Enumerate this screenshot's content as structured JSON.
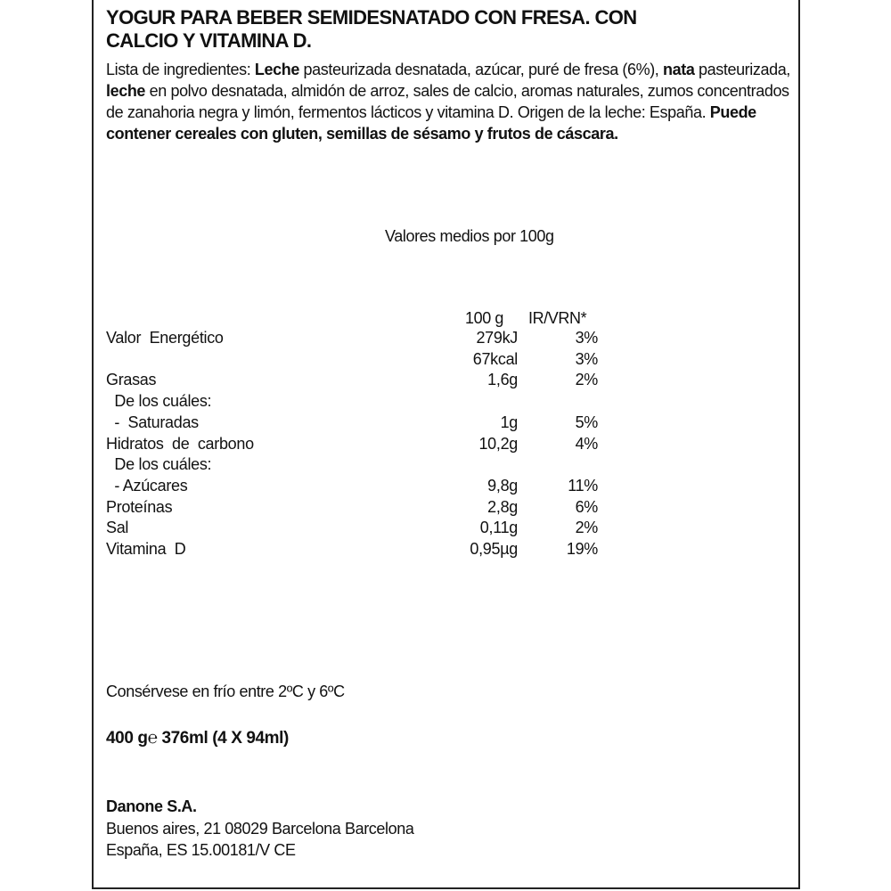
{
  "title": [
    "YOGUR PARA BEBER SEMIDESNATADO CON FRESA. CON",
    "CALCIO Y VITAMINA D."
  ],
  "ingredients": [
    {
      "text": "Lista de ingredientes: ",
      "bold": false
    },
    {
      "text": "Leche",
      "bold": true
    },
    {
      "text": " pasteurizada desnatada, azúcar, puré de fresa (6%), ",
      "bold": false
    },
    {
      "text": "nata",
      "bold": true
    },
    {
      "text": " pasteurizada, ",
      "bold": false
    },
    {
      "text": "leche",
      "bold": true
    },
    {
      "text": " en polvo desnatada, almidón de arroz, sales de calcio, aromas naturales, zumos concentrados de zanahoria negra y limón, fermentos lácticos y vitamina D. Origen de la leche: España.  ",
      "bold": false
    },
    {
      "text": "Puede contener cereales con gluten, semillas de sésamo y frutos de cáscara.",
      "bold": true
    }
  ],
  "nutrition": {
    "heading": "Valores medios por 100g",
    "col_100g": "100 g",
    "col_ir": "IR/VRN*",
    "rows": [
      {
        "label": "Valor  Energético",
        "value": "279kJ",
        "pct": "3%"
      },
      {
        "label": "",
        "value": "67kcal",
        "pct": "3%"
      },
      {
        "label": "Grasas",
        "value": "1,6g",
        "pct": "2%"
      },
      {
        "label": "  De los cuáles:",
        "value": "",
        "pct": ""
      },
      {
        "label": "  -  Saturadas",
        "value": "1g",
        "pct": "5%"
      },
      {
        "label": "Hidratos  de  carbono",
        "value": "10,2g",
        "pct": "4%"
      },
      {
        "label": "  De los cuáles:",
        "value": "",
        "pct": ""
      },
      {
        "label": "  - Azúcares",
        "value": "9,8g",
        "pct": "11%"
      },
      {
        "label": "Proteínas",
        "value": "2,8g",
        "pct": "6%"
      },
      {
        "label": "Sal",
        "value": "0,11g",
        "pct": "2%"
      },
      {
        "label": "Vitamina  D",
        "value": "0,95µg",
        "pct": "19%"
      }
    ]
  },
  "storage": "Consérvese en frío entre 2ºC y 6ºC",
  "quantity": "400 g℮ 376ml (4 X 94ml)",
  "company": {
    "name": "Danone S.A.",
    "address1": "Buenos aires, 21 08029 Barcelona  Barcelona",
    "address2": "España,  ES 15.00181/V CE"
  }
}
